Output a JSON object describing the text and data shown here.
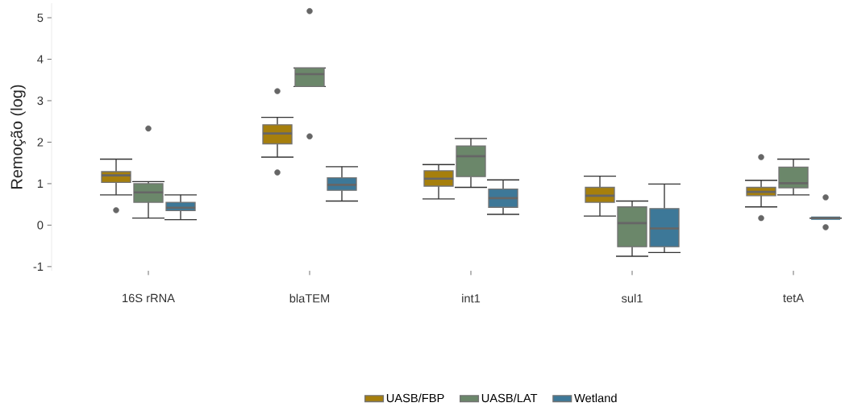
{
  "chart_data": {
    "type": "box",
    "ylabel": "Remoção (log)",
    "categories": [
      "16S rRNA",
      "blaTEM",
      "int1",
      "sul1",
      "tetA"
    ],
    "ylim": [
      -1.1,
      5.35
    ],
    "yticks": [
      -1,
      0,
      1,
      2,
      3,
      4,
      5
    ],
    "legend": "bottom",
    "series": [
      {
        "name": "UASB/FBP",
        "color": "#a67f0c",
        "boxes": [
          {
            "low": 0.73,
            "q1": 1.03,
            "median": 1.2,
            "q3": 1.29,
            "high": 1.59,
            "outliers": [
              0.36
            ]
          },
          {
            "low": 1.64,
            "q1": 1.96,
            "median": 2.21,
            "q3": 2.42,
            "high": 2.6,
            "outliers": [
              3.23,
              1.27
            ]
          },
          {
            "low": 0.63,
            "q1": 0.94,
            "median": 1.12,
            "q3": 1.31,
            "high": 1.46
          },
          {
            "low": 0.22,
            "q1": 0.55,
            "median": 0.71,
            "q3": 0.91,
            "high": 1.18
          },
          {
            "low": 0.44,
            "q1": 0.71,
            "median": 0.8,
            "q3": 0.91,
            "high": 1.08,
            "outliers": [
              1.64,
              0.17
            ]
          }
        ]
      },
      {
        "name": "UASB/LAT",
        "color": "#6b876a",
        "boxes": [
          {
            "low": 0.17,
            "q1": 0.55,
            "median": 0.79,
            "q3": 1.0,
            "high": 1.05,
            "outliers": [
              2.33
            ]
          },
          {
            "low": 3.34,
            "q1": 3.34,
            "median": 3.64,
            "q3": 3.79,
            "high": 3.79,
            "outliers": [
              5.16,
              2.14
            ]
          },
          {
            "low": 0.91,
            "q1": 1.17,
            "median": 1.66,
            "q3": 1.91,
            "high": 2.09
          },
          {
            "low": -0.75,
            "q1": -0.52,
            "median": 0.05,
            "q3": 0.44,
            "high": 0.58
          },
          {
            "low": 0.73,
            "q1": 0.9,
            "median": 1.01,
            "q3": 1.4,
            "high": 1.59
          }
        ]
      },
      {
        "name": "Wetland",
        "color": "#3d7898",
        "boxes": [
          {
            "low": 0.13,
            "q1": 0.35,
            "median": 0.42,
            "q3": 0.55,
            "high": 0.73
          },
          {
            "low": 0.58,
            "q1": 0.84,
            "median": 0.97,
            "q3": 1.14,
            "high": 1.41
          },
          {
            "low": 0.26,
            "q1": 0.43,
            "median": 0.65,
            "q3": 0.87,
            "high": 1.09
          },
          {
            "low": -0.66,
            "q1": -0.52,
            "median": -0.08,
            "q3": 0.4,
            "high": 0.99
          },
          {
            "low": 0.17,
            "q1": 0.17,
            "median": 0.17,
            "q3": 0.17,
            "high": 0.17,
            "outliers": [
              0.67,
              -0.05
            ]
          }
        ]
      }
    ]
  }
}
